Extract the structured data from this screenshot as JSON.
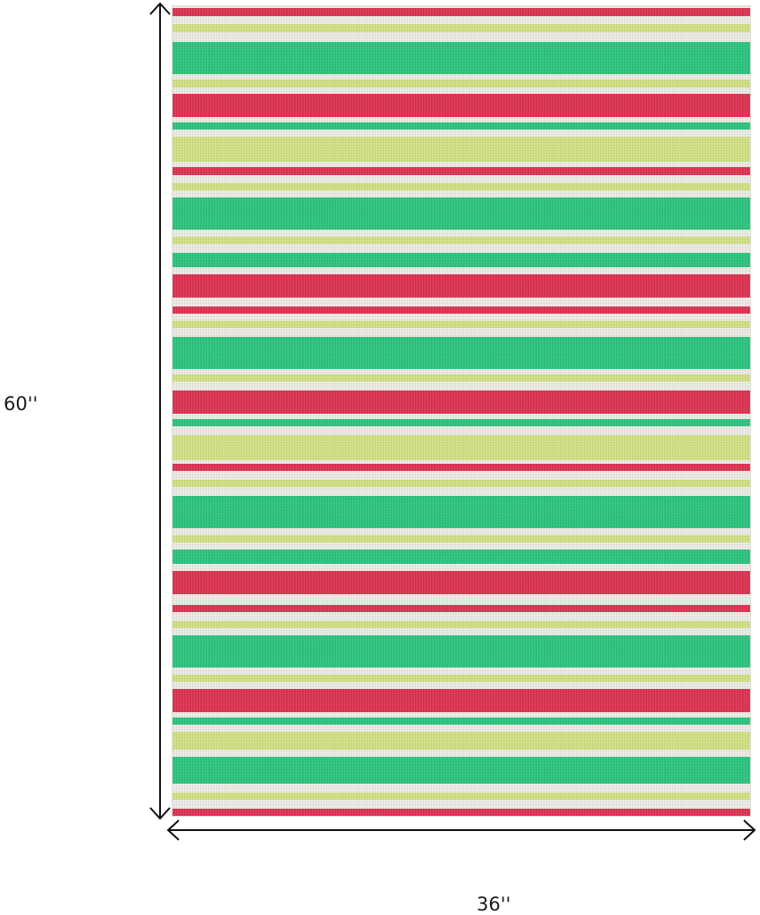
{
  "dimensions": {
    "height_label": "60''",
    "width_label": "36''"
  },
  "rug": {
    "colors": {
      "red": "#dd3553",
      "green": "#2ec57f",
      "lime": "#d2e184",
      "cream": "#ecebe5"
    }
  }
}
